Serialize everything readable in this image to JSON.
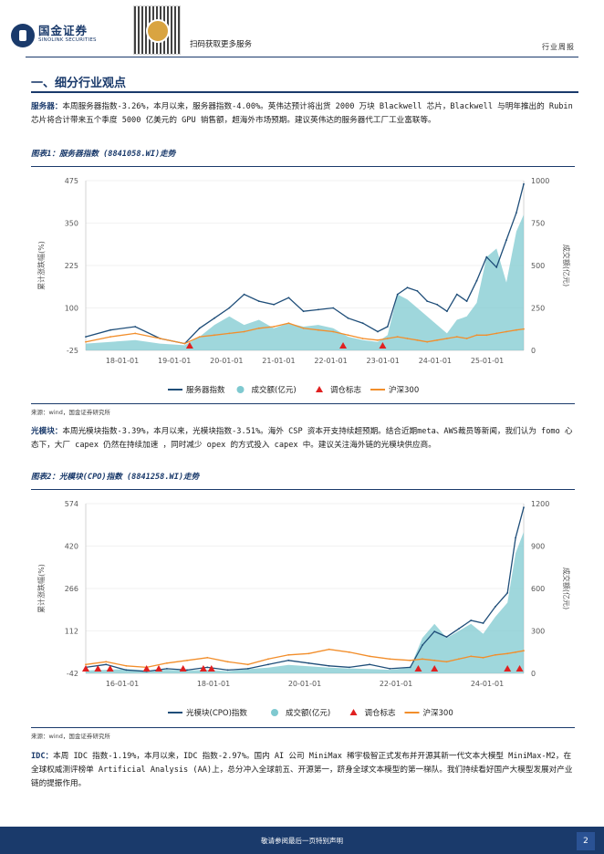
{
  "header": {
    "logo_cn": "国金证券",
    "logo_en": "SINOLINK SECURITIES",
    "scan_text": "扫码获取更多服务",
    "report_type": "行业周报"
  },
  "section": {
    "title": "一、细分行业观点"
  },
  "paragraphs": {
    "server": {
      "label": "服务器：",
      "text": "本周服务器指数-3.26%，本月以来，服务器指数-4.00%。英伟达预计将出货 2000 万块 Blackwell 芯片，Blackwell 与明年推出的 Rubin 芯片将合计带来五个季度 5000 亿美元的 GPU 销售额，超海外市场预期。建议英伟达的服务器代工厂工业富联等。"
    },
    "optical": {
      "label": "光模块：",
      "text": "本周光模块指数-3.39%，本月以来，光模块指数-3.51%。海外 CSP 资本开支持续超预期。结合近期meta、AWS裁员等新闻，我们认为 fomo 心态下，大厂 capex 仍然在持续加速 ，同时减少 opex 的方式投入 capex 中。建议关注海外链的光模块供应商。"
    },
    "idc": {
      "label": "IDC：",
      "text": "本周 IDC 指数-1.19%，本月以来，IDC 指数-2.97%。国内 AI 公司 MiniMax 稀宇极智正式发布并开源其新一代文本大模型 MiniMax-M2，在全球权威测评榜单 Artificial Analysis (AA)上，总分冲入全球前五、开源第一，跻身全球文本模型的第一梯队。我们持续看好国产大模型发展对产业链的提振作用。"
    }
  },
  "figures": {
    "fig1": {
      "title": "图表1：服务器指数 (8841058.WI)走势",
      "source": "来源：wind，国金证券研究所"
    },
    "fig2": {
      "title": "图表2：光模块(CPO)指数 (8841258.WI)走势",
      "source": "来源：wind，国金证券研究所"
    }
  },
  "chart_data": [
    {
      "type": "line",
      "title": "服务器指数 (8841058.WI)走势",
      "ylabel": "累计涨跌幅(%)",
      "y2label": "成交额(亿元)",
      "ylim": [
        -25,
        475
      ],
      "y2lim": [
        0,
        1000
      ],
      "yticks": [
        "475",
        "350",
        "225",
        "100",
        "-25"
      ],
      "y2ticks": [
        "1000",
        "750",
        "500",
        "250",
        "0"
      ],
      "xticks": [
        "18-01-01",
        "19-01-01",
        "20-01-01",
        "21-01-01",
        "22-01-01",
        "23-01-01",
        "24-01-01",
        "25-01-01"
      ],
      "x": [
        2017.0,
        2017.5,
        2018.0,
        2018.5,
        2019.0,
        2019.3,
        2019.6,
        2019.9,
        2020.2,
        2020.5,
        2020.8,
        2021.1,
        2021.4,
        2021.7,
        2022.0,
        2022.3,
        2022.6,
        2022.9,
        2023.1,
        2023.3,
        2023.5,
        2023.7,
        2023.9,
        2024.1,
        2024.3,
        2024.5,
        2024.7,
        2024.9,
        2025.1,
        2025.3,
        2025.5,
        2025.7,
        2025.85
      ],
      "series": [
        {
          "name": "服务器指数",
          "color": "#1f4e79",
          "values": [
            15,
            35,
            45,
            10,
            -5,
            40,
            70,
            100,
            140,
            120,
            110,
            130,
            90,
            95,
            100,
            70,
            55,
            30,
            45,
            140,
            160,
            150,
            120,
            110,
            90,
            140,
            120,
            180,
            250,
            220,
            300,
            380,
            465
          ]
        },
        {
          "name": "成交额(亿元)",
          "color": "#7fc9d0",
          "axis": "y2",
          "values": [
            40,
            50,
            60,
            40,
            30,
            80,
            150,
            200,
            150,
            180,
            130,
            160,
            140,
            150,
            130,
            80,
            60,
            50,
            90,
            330,
            300,
            250,
            200,
            150,
            100,
            180,
            200,
            280,
            550,
            600,
            400,
            700,
            800
          ]
        },
        {
          "name": "沪深300",
          "color": "#f28e2b",
          "values": [
            0,
            15,
            25,
            10,
            -5,
            15,
            20,
            25,
            30,
            40,
            45,
            55,
            40,
            35,
            30,
            20,
            10,
            5,
            10,
            15,
            10,
            5,
            0,
            5,
            10,
            15,
            10,
            20,
            20,
            25,
            30,
            35,
            38
          ]
        }
      ],
      "markers": {
        "name": "调仓标志",
        "color": "#e02020",
        "x": [
          2019.1,
          2022.2,
          2023.0
        ]
      },
      "legend": [
        "服务器指数",
        "成交额(亿元)",
        "调仓标志",
        "沪深300"
      ]
    },
    {
      "type": "line",
      "title": "光模块(CPO)指数 (8841258.WI)走势",
      "ylabel": "累计涨跌幅(%)",
      "y2label": "成交额(亿元)",
      "ylim": [
        -42,
        574
      ],
      "y2lim": [
        0,
        1200
      ],
      "yticks": [
        "574",
        "420",
        "266",
        "112",
        "-42"
      ],
      "y2ticks": [
        "1200",
        "900",
        "600",
        "300",
        "0"
      ],
      "xticks": [
        "16-01-01",
        "18-01-01",
        "20-01-01",
        "22-01-01",
        "24-01-01"
      ],
      "x": [
        2015.0,
        2015.5,
        2016.0,
        2016.5,
        2017.0,
        2017.5,
        2018.0,
        2018.5,
        2019.0,
        2019.5,
        2020.0,
        2020.5,
        2021.0,
        2021.5,
        2022.0,
        2022.5,
        2023.0,
        2023.3,
        2023.6,
        2023.9,
        2024.2,
        2024.5,
        2024.8,
        2025.1,
        2025.4,
        2025.6,
        2025.8
      ],
      "series": [
        {
          "name": "光模块(CPO)指数",
          "color": "#1f4e79",
          "values": [
            -20,
            -10,
            -30,
            -35,
            -25,
            -30,
            -20,
            -30,
            -25,
            -10,
            5,
            -5,
            -15,
            -20,
            -10,
            -25,
            -20,
            60,
            110,
            90,
            120,
            150,
            140,
            200,
            250,
            450,
            560
          ]
        },
        {
          "name": "成交额(亿元)",
          "color": "#7fc9d0",
          "axis": "y2",
          "values": [
            20,
            25,
            30,
            20,
            25,
            20,
            25,
            15,
            30,
            40,
            60,
            50,
            40,
            35,
            30,
            25,
            40,
            250,
            350,
            250,
            300,
            350,
            280,
            400,
            500,
            850,
            1000
          ]
        },
        {
          "name": "沪深300",
          "color": "#f28e2b",
          "values": [
            -10,
            0,
            -15,
            -20,
            -5,
            5,
            15,
            0,
            -10,
            10,
            25,
            30,
            45,
            35,
            20,
            10,
            5,
            10,
            5,
            0,
            10,
            20,
            15,
            25,
            30,
            35,
            40
          ]
        }
      ],
      "markers": {
        "name": "调仓标志",
        "color": "#e02020",
        "x": [
          2015.0,
          2015.3,
          2015.6,
          2016.5,
          2016.8,
          2017.4,
          2017.9,
          2018.1,
          2023.2,
          2023.6,
          2025.4,
          2025.7
        ]
      },
      "legend": [
        "光模块(CPO)指数",
        "成交额(亿元)",
        "调仓标志",
        "沪深300"
      ]
    }
  ],
  "footer": {
    "text": "敬请参阅最后一页特别声明",
    "page": "2"
  }
}
